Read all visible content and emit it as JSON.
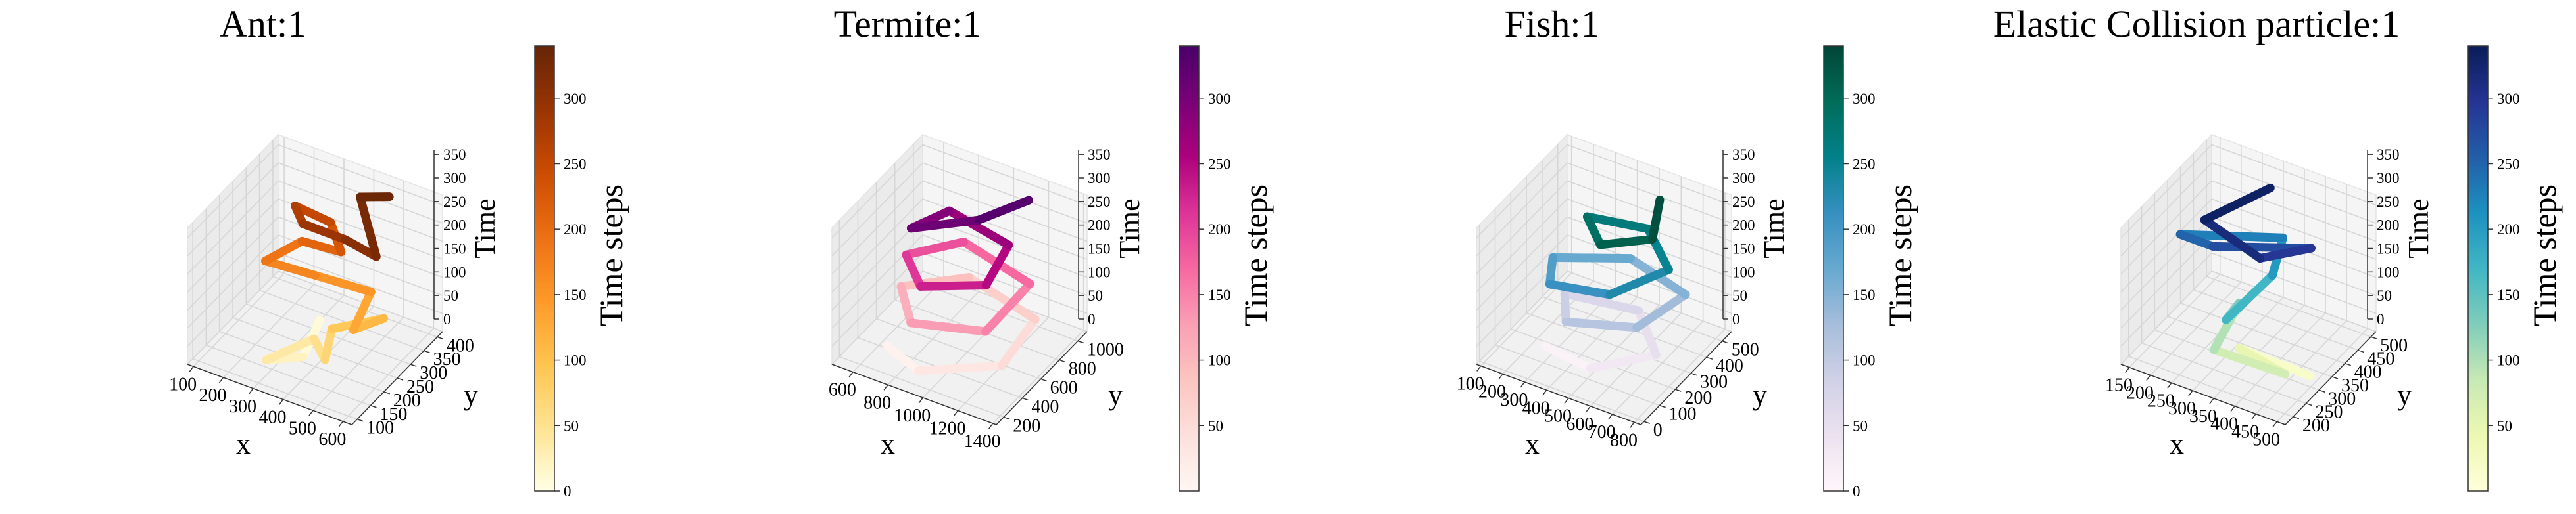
{
  "figure": {
    "colorbar_label": "Time steps",
    "axis_labels": {
      "x": "x",
      "y": "y",
      "z": "Time"
    }
  },
  "chart_data": [
    {
      "type": "line3d",
      "title": "Ant:1",
      "colormap": "YlOrBr",
      "gradient": [
        "#ffffe5",
        "#fee391",
        "#fec44f",
        "#fe9929",
        "#ec7014",
        "#cc4c02",
        "#993404",
        "#662506"
      ],
      "xlabel": "x",
      "ylabel": "y",
      "zlabel": "Time",
      "xticks": [
        100,
        200,
        300,
        400,
        500,
        600
      ],
      "yticks": [
        100,
        150,
        200,
        250,
        300,
        350,
        400
      ],
      "zticks": [
        0,
        50,
        100,
        150,
        200,
        250,
        300,
        350
      ],
      "xlim": [
        80,
        630
      ],
      "ylim": [
        80,
        420
      ],
      "zlim": [
        0,
        360
      ],
      "colorbar": {
        "label": "Time steps",
        "ticks": [
          0,
          50,
          100,
          150,
          200,
          250,
          300
        ],
        "range": [
          0,
          340
        ]
      },
      "trajectory": [
        {
          "t": 0,
          "x": 300,
          "y": 330
        },
        {
          "t": 15,
          "x": 360,
          "y": 200
        },
        {
          "t": 30,
          "x": 290,
          "y": 140
        },
        {
          "t": 45,
          "x": 370,
          "y": 230
        },
        {
          "t": 60,
          "x": 460,
          "y": 170
        },
        {
          "t": 80,
          "x": 420,
          "y": 240
        },
        {
          "t": 100,
          "x": 540,
          "y": 300
        },
        {
          "t": 120,
          "x": 510,
          "y": 220
        },
        {
          "t": 140,
          "x": 480,
          "y": 320
        },
        {
          "t": 160,
          "x": 320,
          "y": 290
        },
        {
          "t": 180,
          "x": 180,
          "y": 260
        },
        {
          "t": 200,
          "x": 240,
          "y": 330
        },
        {
          "t": 220,
          "x": 380,
          "y": 320
        },
        {
          "t": 240,
          "x": 300,
          "y": 370
        },
        {
          "t": 260,
          "x": 190,
          "y": 360
        },
        {
          "t": 280,
          "x": 270,
          "y": 300
        },
        {
          "t": 300,
          "x": 430,
          "y": 280
        },
        {
          "t": 315,
          "x": 560,
          "y": 250
        },
        {
          "t": 330,
          "x": 390,
          "y": 380
        },
        {
          "t": 340,
          "x": 470,
          "y": 400
        }
      ]
    },
    {
      "type": "line3d",
      "title": "Termite:1",
      "colormap": "RdPu",
      "gradient": [
        "#fff7f3",
        "#fde0dd",
        "#fcc5c0",
        "#fa9fb5",
        "#f768a1",
        "#dd3497",
        "#ae017e",
        "#7a0177",
        "#49006a"
      ],
      "xlabel": "x",
      "ylabel": "y",
      "zlabel": "Time",
      "xticks": [
        600,
        800,
        1000,
        1200,
        1400
      ],
      "yticks": [
        200,
        400,
        600,
        800,
        1000
      ],
      "zticks": [
        0,
        50,
        100,
        150,
        200,
        250,
        300,
        350
      ],
      "xlim": [
        480,
        1420
      ],
      "ylim": [
        120,
        1100
      ],
      "zlim": [
        0,
        360
      ],
      "colorbar": {
        "label": "Time steps",
        "ticks": [
          50,
          100,
          150,
          200,
          250,
          300
        ],
        "range": [
          0,
          340
        ]
      },
      "trajectory": [
        {
          "t": 0,
          "x": 640,
          "y": 420
        },
        {
          "t": 20,
          "x": 900,
          "y": 260
        },
        {
          "t": 40,
          "x": 1260,
          "y": 480
        },
        {
          "t": 60,
          "x": 1240,
          "y": 880
        },
        {
          "t": 80,
          "x": 820,
          "y": 960
        },
        {
          "t": 100,
          "x": 600,
          "y": 640
        },
        {
          "t": 120,
          "x": 820,
          "y": 330
        },
        {
          "t": 140,
          "x": 1200,
          "y": 420
        },
        {
          "t": 160,
          "x": 1220,
          "y": 860
        },
        {
          "t": 180,
          "x": 800,
          "y": 940
        },
        {
          "t": 200,
          "x": 640,
          "y": 620
        },
        {
          "t": 220,
          "x": 860,
          "y": 360
        },
        {
          "t": 240,
          "x": 1160,
          "y": 500
        },
        {
          "t": 260,
          "x": 1120,
          "y": 820
        },
        {
          "t": 280,
          "x": 760,
          "y": 860
        },
        {
          "t": 300,
          "x": 700,
          "y": 560
        },
        {
          "t": 320,
          "x": 980,
          "y": 760
        },
        {
          "t": 340,
          "x": 1140,
          "y": 1000
        }
      ]
    },
    {
      "type": "line3d",
      "title": "Fish:1",
      "colormap": "PuBuGn",
      "gradient": [
        "#fff7fb",
        "#ece2f0",
        "#d0d1e6",
        "#a6bddb",
        "#67a9cf",
        "#3690c0",
        "#02818a",
        "#016c59",
        "#014636"
      ],
      "xlabel": "x",
      "ylabel": "y",
      "zlabel": "Time",
      "xticks": [
        100,
        200,
        300,
        400,
        500,
        600,
        700,
        800
      ],
      "yticks": [
        0,
        100,
        200,
        300,
        400,
        500
      ],
      "zticks": [
        0,
        50,
        100,
        150,
        200,
        250,
        300,
        350
      ],
      "xlim": [
        80,
        830
      ],
      "ylim": [
        -20,
        560
      ],
      "zlim": [
        0,
        360
      ],
      "colorbar": {
        "label": "Time steps",
        "ticks": [
          0,
          50,
          100,
          150,
          200,
          250,
          300
        ],
        "range": [
          0,
          340
        ]
      },
      "trajectory": [
        {
          "t": 0,
          "x": 250,
          "y": 180
        },
        {
          "t": 20,
          "x": 500,
          "y": 120
        },
        {
          "t": 40,
          "x": 700,
          "y": 260
        },
        {
          "t": 60,
          "x": 520,
          "y": 400
        },
        {
          "t": 80,
          "x": 240,
          "y": 320
        },
        {
          "t": 100,
          "x": 360,
          "y": 160
        },
        {
          "t": 120,
          "x": 640,
          "y": 220
        },
        {
          "t": 140,
          "x": 720,
          "y": 420
        },
        {
          "t": 160,
          "x": 440,
          "y": 460
        },
        {
          "t": 180,
          "x": 200,
          "y": 300
        },
        {
          "t": 200,
          "x": 300,
          "y": 140
        },
        {
          "t": 220,
          "x": 560,
          "y": 160
        },
        {
          "t": 240,
          "x": 700,
          "y": 340
        },
        {
          "t": 260,
          "x": 520,
          "y": 460
        },
        {
          "t": 280,
          "x": 300,
          "y": 380
        },
        {
          "t": 300,
          "x": 460,
          "y": 240
        },
        {
          "t": 320,
          "x": 640,
          "y": 320
        },
        {
          "t": 340,
          "x": 560,
          "y": 480
        }
      ]
    },
    {
      "type": "line3d",
      "title": "Elastic Collision particle:1",
      "colormap": "YlGnBu",
      "gradient": [
        "#ffffd9",
        "#edf8b1",
        "#c7e9b4",
        "#7fcdbb",
        "#41b6c4",
        "#1d91c0",
        "#225ea8",
        "#253494",
        "#081d58"
      ],
      "xlabel": "x",
      "ylabel": "y",
      "zlabel": "Time",
      "xticks": [
        150,
        200,
        250,
        300,
        350,
        400,
        450,
        500
      ],
      "yticks": [
        200,
        250,
        300,
        350,
        400,
        450,
        500
      ],
      "zticks": [
        0,
        50,
        100,
        150,
        200,
        250,
        300,
        350
      ],
      "xlim": [
        130,
        520
      ],
      "ylim": [
        170,
        520
      ],
      "zlim": [
        0,
        360
      ],
      "colorbar": {
        "label": "Time steps",
        "ticks": [
          50,
          100,
          150,
          200,
          250,
          300
        ],
        "range": [
          0,
          340
        ]
      },
      "trajectory": [
        {
          "t": 0,
          "x": 480,
          "y": 330
        },
        {
          "t": 35,
          "x": 330,
          "y": 300
        },
        {
          "t": 60,
          "x": 470,
          "y": 250
        },
        {
          "t": 85,
          "x": 320,
          "y": 220
        },
        {
          "t": 110,
          "x": 300,
          "y": 350
        },
        {
          "t": 150,
          "x": 330,
          "y": 250
        },
        {
          "t": 190,
          "x": 360,
          "y": 380
        },
        {
          "t": 215,
          "x": 330,
          "y": 470
        },
        {
          "t": 240,
          "x": 160,
          "y": 350
        },
        {
          "t": 260,
          "x": 250,
          "y": 330
        },
        {
          "t": 285,
          "x": 440,
          "y": 400
        },
        {
          "t": 305,
          "x": 380,
          "y": 300
        },
        {
          "t": 325,
          "x": 230,
          "y": 330
        },
        {
          "t": 340,
          "x": 300,
          "y": 470
        }
      ]
    }
  ]
}
